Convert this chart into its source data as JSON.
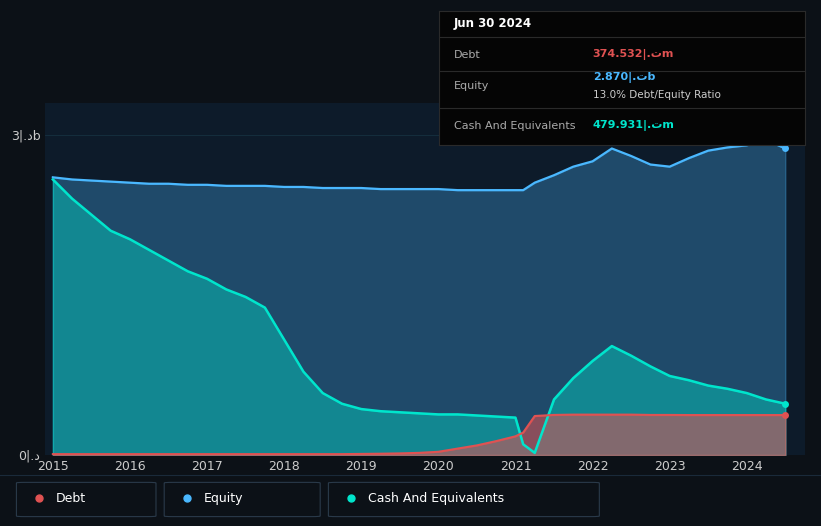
{
  "bg_color": "#0c1117",
  "plot_bg_color": "#0d1b2a",
  "grid_color": "#1a3a4a",
  "tooltip": {
    "date": "Jun 30 2024",
    "debt_label": "Debt",
    "debt_value": "374.532|.تm",
    "equity_label": "Equity",
    "equity_value": "2.870|.تb",
    "ratio": "13.0% Debt/Equity Ratio",
    "cash_label": "Cash And Equivalents",
    "cash_value": "479.931|.تm"
  },
  "legend": [
    {
      "label": "Debt",
      "color": "#e05252"
    },
    {
      "label": "Equity",
      "color": "#4ab8ff"
    },
    {
      "label": "Cash And Equivalents",
      "color": "#00e5cc"
    }
  ],
  "years": [
    2015.0,
    2015.25,
    2015.5,
    2015.75,
    2016.0,
    2016.25,
    2016.5,
    2016.75,
    2017.0,
    2017.25,
    2017.5,
    2017.75,
    2018.0,
    2018.25,
    2018.5,
    2018.75,
    2019.0,
    2019.25,
    2019.5,
    2019.75,
    2020.0,
    2020.25,
    2020.5,
    2020.75,
    2021.0,
    2021.1,
    2021.25,
    2021.5,
    2021.75,
    2022.0,
    2022.25,
    2022.5,
    2022.75,
    2023.0,
    2023.25,
    2023.5,
    2023.75,
    2024.0,
    2024.25,
    2024.5
  ],
  "equity": [
    2.6,
    2.58,
    2.57,
    2.56,
    2.55,
    2.54,
    2.54,
    2.53,
    2.53,
    2.52,
    2.52,
    2.52,
    2.51,
    2.51,
    2.5,
    2.5,
    2.5,
    2.49,
    2.49,
    2.49,
    2.49,
    2.48,
    2.48,
    2.48,
    2.48,
    2.48,
    2.55,
    2.62,
    2.7,
    2.75,
    2.87,
    2.8,
    2.72,
    2.7,
    2.78,
    2.85,
    2.88,
    2.9,
    2.95,
    2.87
  ],
  "cash": [
    2.58,
    2.4,
    2.25,
    2.1,
    2.02,
    1.92,
    1.82,
    1.72,
    1.65,
    1.55,
    1.48,
    1.38,
    1.08,
    0.78,
    0.58,
    0.48,
    0.43,
    0.41,
    0.4,
    0.39,
    0.38,
    0.38,
    0.37,
    0.36,
    0.35,
    0.1,
    0.02,
    0.52,
    0.72,
    0.88,
    1.02,
    0.93,
    0.83,
    0.74,
    0.7,
    0.65,
    0.62,
    0.58,
    0.52,
    0.48
  ],
  "debt": [
    0.008,
    0.008,
    0.008,
    0.008,
    0.008,
    0.008,
    0.008,
    0.008,
    0.008,
    0.008,
    0.008,
    0.008,
    0.008,
    0.008,
    0.008,
    0.008,
    0.01,
    0.012,
    0.015,
    0.02,
    0.03,
    0.06,
    0.09,
    0.13,
    0.175,
    0.21,
    0.365,
    0.375,
    0.378,
    0.378,
    0.378,
    0.378,
    0.375,
    0.375,
    0.374,
    0.374,
    0.374,
    0.374,
    0.374,
    0.374
  ],
  "xlim": [
    2014.9,
    2024.75
  ],
  "ylim": [
    0,
    3.3
  ],
  "yticks": [
    0,
    3.0
  ],
  "ytick_labels": [
    "0|.د",
    "3|.دb"
  ],
  "xticks": [
    2015,
    2016,
    2017,
    2018,
    2019,
    2020,
    2021,
    2022,
    2023,
    2024
  ]
}
